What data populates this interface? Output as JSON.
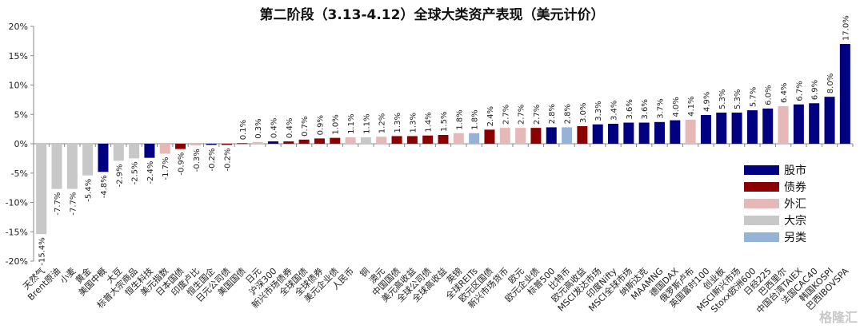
{
  "chart_data": {
    "type": "bar",
    "title": "第二阶段（3.13-4.12）全球大类资产表现（美元计价）",
    "ylim": [
      -20,
      20
    ],
    "yticks": [
      "20%",
      "15%",
      "10%",
      "5%",
      "0%",
      "-5%",
      "-10%",
      "-15%",
      "-20%"
    ],
    "ytick_values": [
      20,
      15,
      10,
      5,
      0,
      -5,
      -10,
      -15,
      -20
    ],
    "grid": false,
    "legend_position": "right",
    "legend": [
      {
        "name": "股市",
        "color": "#000080"
      },
      {
        "name": "债券",
        "color": "#8B0000"
      },
      {
        "name": "外汇",
        "color": "#E6B8B7"
      },
      {
        "name": "大宗",
        "color": "#C8C8C8"
      },
      {
        "name": "另类",
        "color": "#95B3D7"
      }
    ],
    "categories": [
      "天然气",
      "Brent原油",
      "小麦",
      "黄金",
      "美国中概",
      "大豆",
      "标普大宗商品",
      "恒生科技",
      "美元指数",
      "日本国债",
      "印度卢比",
      "恒生国企",
      "日元公司债",
      "美国国债",
      "日元",
      "沪深300",
      "新兴市场债券",
      "全球国债",
      "全球债券",
      "美元企业债",
      "人民币",
      "铜",
      "澳元",
      "中国国债",
      "美元高收益",
      "全球公司债",
      "全球高收益",
      "英镑",
      "全球REITs",
      "欧元区国债",
      "新兴市场货币",
      "欧元",
      "欧元企业债",
      "标普500",
      "比特币",
      "欧元高收益",
      "MSCI发达市场",
      "印度Nifty",
      "MSCI全球市场",
      "纳斯达克",
      "MAAMNG",
      "德国DAX",
      "俄罗斯卢布",
      "英国富时100",
      "创业板",
      "MSCI新兴市场",
      "Stoxx欧洲600",
      "日经225",
      "巴西里尔",
      "中国台湾TAIEX",
      "法国CAC40",
      "韩国KOSPI",
      "巴西IBOVSPA"
    ],
    "values": [
      -15.4,
      -7.7,
      -7.7,
      -5.4,
      -4.8,
      -2.9,
      -2.5,
      -2.4,
      -1.7,
      -0.9,
      -0.3,
      -0.2,
      -0.2,
      0.1,
      0.3,
      0.4,
      0.4,
      0.7,
      0.9,
      1.0,
      1.1,
      1.1,
      1.2,
      1.3,
      1.3,
      1.4,
      1.5,
      1.8,
      1.8,
      2.4,
      2.7,
      2.7,
      2.7,
      2.8,
      2.8,
      3.0,
      3.3,
      3.4,
      3.6,
      3.6,
      3.7,
      4.0,
      4.1,
      4.9,
      5.3,
      5.3,
      5.7,
      6.0,
      6.4,
      6.7,
      6.9,
      8.0,
      17.0
    ],
    "data_labels": [
      "-15.4%",
      "-7.7%",
      "-7.7%",
      "-5.4%",
      "-4.8%",
      "-2.9%",
      "-2.5%",
      "-2.4%",
      "-1.7%",
      "-0.9%",
      "-0.3%",
      "-0.2%",
      "-0.2%",
      "0.1%",
      "0.3%",
      "0.4%",
      "0.4%",
      "0.7%",
      "0.9%",
      "1.0%",
      "1.1%",
      "1.1%",
      "1.2%",
      "1.3%",
      "1.3%",
      "1.4%",
      "1.5%",
      "1.8%",
      "1.8%",
      "2.4%",
      "2.7%",
      "2.7%",
      "2.7%",
      "2.8%",
      "2.8%",
      "3.0%",
      "3.3%",
      "3.4%",
      "3.6%",
      "3.6%",
      "3.7%",
      "4.0%",
      "4.1%",
      "4.9%",
      "5.3%",
      "5.3%",
      "5.7%",
      "6.0%",
      "6.4%",
      "6.7%",
      "6.9%",
      "8.0%",
      "17.0%"
    ],
    "asset_class": [
      "大宗",
      "大宗",
      "大宗",
      "大宗",
      "股市",
      "大宗",
      "大宗",
      "股市",
      "外汇",
      "债券",
      "外汇",
      "股市",
      "债券",
      "债券",
      "外汇",
      "股市",
      "债券",
      "债券",
      "债券",
      "债券",
      "外汇",
      "大宗",
      "外汇",
      "债券",
      "债券",
      "债券",
      "债券",
      "外汇",
      "另类",
      "债券",
      "外汇",
      "外汇",
      "债券",
      "股市",
      "另类",
      "债券",
      "股市",
      "股市",
      "股市",
      "股市",
      "股市",
      "股市",
      "外汇",
      "股市",
      "股市",
      "股市",
      "股市",
      "股市",
      "外汇",
      "股市",
      "股市",
      "股市",
      "股市"
    ]
  },
  "watermark": "格隆汇"
}
